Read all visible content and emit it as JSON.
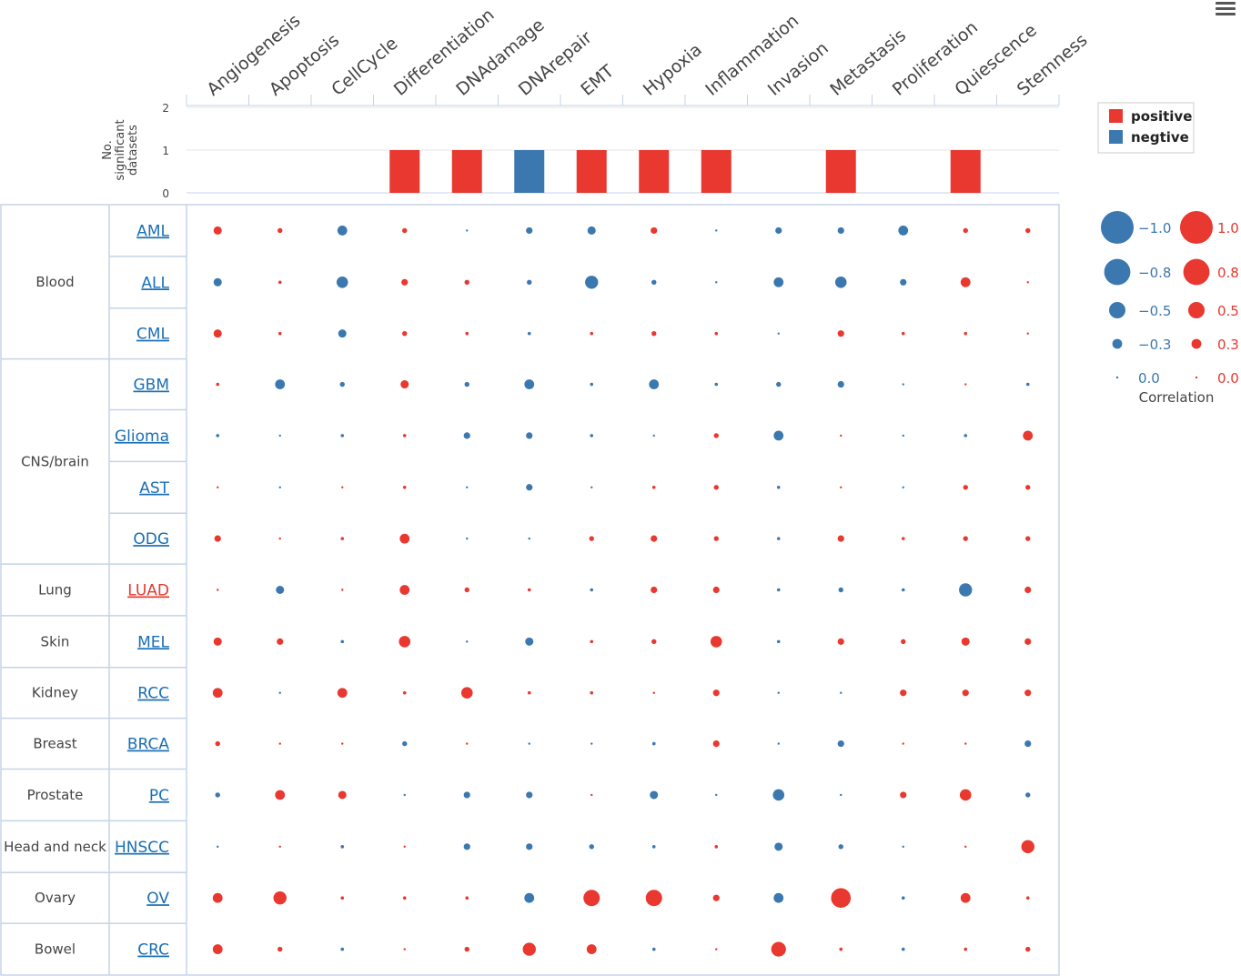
{
  "chart_data": {
    "type": "bubble-matrix",
    "processes": [
      "Angiogenesis",
      "Apoptosis",
      "CellCycle",
      "Differentiation",
      "DNAdamage",
      "DNArepair",
      "EMT",
      "Hypoxia",
      "Inflammation",
      "Invasion",
      "Metastasis",
      "Proliferation",
      "Quiescence",
      "Stemness"
    ],
    "bar_chart": {
      "ylabel_lines": [
        "No.",
        "significant",
        "datasets"
      ],
      "yticks": [
        "0",
        "1",
        "2"
      ],
      "ylim": [
        0,
        2
      ],
      "values": [
        0,
        0,
        0,
        1,
        1,
        1,
        1,
        1,
        1,
        0,
        1,
        0,
        1,
        0
      ],
      "signs": [
        "",
        "",
        "",
        "positive",
        "positive",
        "negative",
        "positive",
        "positive",
        "positive",
        "",
        "positive",
        "",
        "positive",
        ""
      ]
    },
    "bar_legend": [
      {
        "key": "positive",
        "label": "positive",
        "color": "#e8382f"
      },
      {
        "key": "negative",
        "label": "negtive",
        "color": "#3b78b0"
      }
    ],
    "groups": [
      {
        "name": "Blood",
        "datasets": [
          "AML",
          "ALL",
          "CML"
        ]
      },
      {
        "name": "CNS/brain",
        "datasets": [
          "GBM",
          "Glioma",
          "AST",
          "ODG"
        ]
      },
      {
        "name": "Lung",
        "datasets": [
          "LUAD"
        ]
      },
      {
        "name": "Skin",
        "datasets": [
          "MEL"
        ]
      },
      {
        "name": "Kidney",
        "datasets": [
          "RCC"
        ]
      },
      {
        "name": "Breast",
        "datasets": [
          "BRCA"
        ]
      },
      {
        "name": "Prostate",
        "datasets": [
          "PC"
        ]
      },
      {
        "name": "Head and neck",
        "datasets": [
          "HNSCC"
        ]
      },
      {
        "name": "Ovary",
        "datasets": [
          "OV"
        ]
      },
      {
        "name": "Bowel",
        "datasets": [
          "CRC"
        ]
      }
    ],
    "highlight_dataset": "LUAD",
    "correlation": {
      "AML": [
        0.25,
        0.15,
        -0.3,
        0.15,
        -0.05,
        -0.2,
        -0.25,
        0.2,
        -0.05,
        -0.2,
        -0.2,
        -0.3,
        0.15,
        0.15
      ],
      "ALL": [
        -0.25,
        0.1,
        -0.35,
        0.2,
        0.15,
        -0.15,
        -0.4,
        -0.15,
        -0.05,
        -0.3,
        -0.35,
        -0.2,
        0.3,
        0.05
      ],
      "CML": [
        0.25,
        0.1,
        -0.25,
        0.15,
        0.1,
        -0.1,
        0.1,
        0.15,
        0.1,
        -0.05,
        0.2,
        0.1,
        0.1,
        0.05
      ],
      "GBM": [
        0.1,
        -0.3,
        -0.15,
        0.25,
        -0.15,
        -0.3,
        -0.1,
        -0.3,
        -0.1,
        -0.15,
        -0.2,
        -0.05,
        0.05,
        -0.1
      ],
      "Glioma": [
        -0.1,
        -0.05,
        -0.1,
        0.1,
        -0.2,
        -0.2,
        -0.1,
        -0.05,
        0.15,
        -0.3,
        0.05,
        -0.05,
        -0.1,
        0.3
      ],
      "AST": [
        0.05,
        -0.05,
        0.05,
        0.1,
        -0.05,
        -0.2,
        -0.05,
        0.1,
        0.15,
        -0.1,
        0.05,
        -0.05,
        0.15,
        0.15
      ],
      "ODG": [
        0.2,
        0.05,
        0.1,
        0.3,
        -0.05,
        -0.05,
        0.15,
        0.2,
        0.15,
        -0.1,
        0.2,
        0.1,
        0.15,
        0.15
      ],
      "LUAD": [
        0.05,
        -0.25,
        0.05,
        0.3,
        0.15,
        0.1,
        -0.1,
        0.2,
        0.2,
        -0.1,
        -0.15,
        -0.1,
        -0.4,
        0.2
      ],
      "MEL": [
        0.25,
        0.2,
        -0.1,
        0.35,
        -0.05,
        -0.25,
        0.1,
        0.15,
        0.35,
        -0.1,
        0.2,
        0.15,
        0.25,
        0.2
      ],
      "RCC": [
        0.3,
        -0.05,
        0.3,
        0.1,
        0.35,
        0.1,
        0.1,
        0.05,
        0.2,
        -0.05,
        -0.05,
        0.2,
        0.2,
        0.2
      ],
      "BRCA": [
        0.15,
        0.05,
        0.05,
        -0.15,
        0.05,
        -0.05,
        -0.05,
        -0.1,
        0.2,
        -0.05,
        -0.2,
        0.05,
        0.05,
        -0.2
      ],
      "PC": [
        -0.15,
        0.3,
        0.25,
        -0.05,
        -0.2,
        -0.2,
        0.05,
        -0.25,
        -0.05,
        -0.35,
        -0.05,
        0.2,
        0.35,
        -0.15
      ],
      "HNSCC": [
        -0.05,
        0.05,
        -0.1,
        0.05,
        -0.2,
        -0.2,
        -0.15,
        -0.1,
        0.1,
        -0.25,
        -0.15,
        -0.05,
        0.05,
        0.4
      ],
      "OV": [
        0.3,
        0.4,
        0.1,
        0.1,
        0.1,
        -0.3,
        0.5,
        0.5,
        0.2,
        -0.3,
        0.6,
        -0.1,
        0.3,
        0.1
      ],
      "CRC": [
        0.3,
        0.15,
        -0.1,
        0.05,
        0.15,
        0.4,
        0.3,
        -0.1,
        0.05,
        0.45,
        0.1,
        -0.1,
        0.1,
        0.15
      ]
    },
    "size_legend": {
      "title": "Correlation",
      "negative": [
        {
          "value": -1.0,
          "label": "−1.0"
        },
        {
          "value": -0.8,
          "label": "−0.8"
        },
        {
          "value": -0.5,
          "label": "−0.5"
        },
        {
          "value": -0.3,
          "label": "−0.3"
        },
        {
          "value": 0.0,
          "label": "0.0"
        }
      ],
      "positive": [
        {
          "value": 1.0,
          "label": "1.0"
        },
        {
          "value": 0.8,
          "label": "0.8"
        },
        {
          "value": 0.5,
          "label": "0.5"
        },
        {
          "value": 0.3,
          "label": "0.3"
        },
        {
          "value": 0.0,
          "label": "0.0"
        }
      ]
    },
    "colors": {
      "positive": "#e8382f",
      "negative": "#3b78b0",
      "link": "#1a6fb5",
      "link_highlight": "#e8382f",
      "grid": "#c5d3e6",
      "text": "#444444"
    }
  },
  "toolbar": {
    "menu_icon": "hamburger-menu-icon"
  }
}
